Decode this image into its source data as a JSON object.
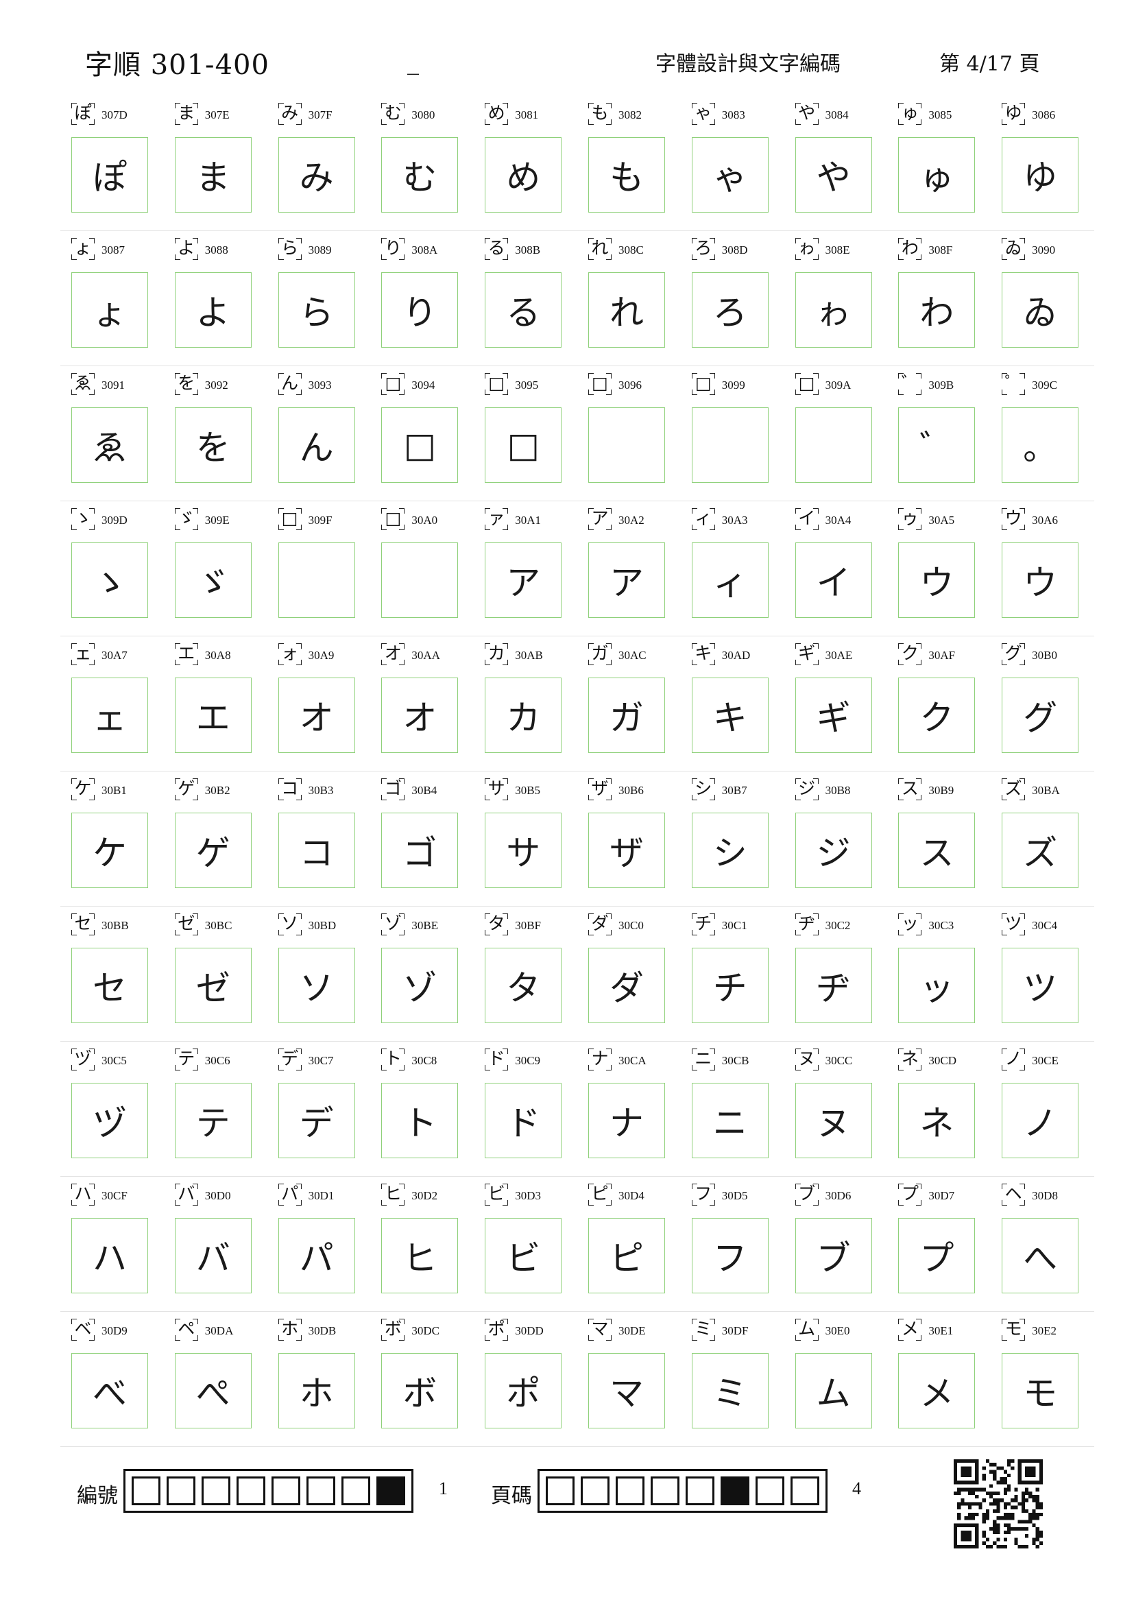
{
  "header": {
    "title": "字順 301-400",
    "dash": "_",
    "project": "字體設計與文字編碼",
    "page": "第 4/17 頁"
  },
  "rows": [
    [
      {
        "ref": "ぽ",
        "code": "307D",
        "hand": "ぽ"
      },
      {
        "ref": "ま",
        "code": "307E",
        "hand": "ま"
      },
      {
        "ref": "み",
        "code": "307F",
        "hand": "み"
      },
      {
        "ref": "む",
        "code": "3080",
        "hand": "む"
      },
      {
        "ref": "め",
        "code": "3081",
        "hand": "め"
      },
      {
        "ref": "も",
        "code": "3082",
        "hand": "も"
      },
      {
        "ref": "ゃ",
        "code": "3083",
        "hand": "ゃ"
      },
      {
        "ref": "や",
        "code": "3084",
        "hand": "や"
      },
      {
        "ref": "ゅ",
        "code": "3085",
        "hand": "ゅ"
      },
      {
        "ref": "ゆ",
        "code": "3086",
        "hand": "ゆ"
      }
    ],
    [
      {
        "ref": "ょ",
        "code": "3087",
        "hand": "ょ"
      },
      {
        "ref": "よ",
        "code": "3088",
        "hand": "よ"
      },
      {
        "ref": "ら",
        "code": "3089",
        "hand": "ら"
      },
      {
        "ref": "り",
        "code": "308A",
        "hand": "り"
      },
      {
        "ref": "る",
        "code": "308B",
        "hand": "る"
      },
      {
        "ref": "れ",
        "code": "308C",
        "hand": "れ"
      },
      {
        "ref": "ろ",
        "code": "308D",
        "hand": "ろ"
      },
      {
        "ref": "ゎ",
        "code": "308E",
        "hand": "ゎ"
      },
      {
        "ref": "わ",
        "code": "308F",
        "hand": "わ"
      },
      {
        "ref": "ゐ",
        "code": "3090",
        "hand": "ゐ"
      }
    ],
    [
      {
        "ref": "ゑ",
        "code": "3091",
        "hand": "ゑ"
      },
      {
        "ref": "を",
        "code": "3092",
        "hand": "を"
      },
      {
        "ref": "ん",
        "code": "3093",
        "hand": "ん"
      },
      {
        "ref": "□",
        "code": "3094",
        "hand": "□"
      },
      {
        "ref": "□",
        "code": "3095",
        "hand": "□"
      },
      {
        "ref": "□",
        "code": "3096",
        "hand": ""
      },
      {
        "ref": "□",
        "code": "3099",
        "hand": ""
      },
      {
        "ref": "□",
        "code": "309A",
        "hand": ""
      },
      {
        "ref": "゛",
        "code": "309B",
        "hand": "゛"
      },
      {
        "ref": "゜",
        "code": "309C",
        "hand": "。"
      }
    ],
    [
      {
        "ref": "ゝ",
        "code": "309D",
        "hand": "ゝ"
      },
      {
        "ref": "ゞ",
        "code": "309E",
        "hand": "ゞ"
      },
      {
        "ref": "□",
        "code": "309F",
        "hand": ""
      },
      {
        "ref": "□",
        "code": "30A0",
        "hand": ""
      },
      {
        "ref": "ァ",
        "code": "30A1",
        "hand": "ア"
      },
      {
        "ref": "ア",
        "code": "30A2",
        "hand": "ア"
      },
      {
        "ref": "ィ",
        "code": "30A3",
        "hand": "ィ"
      },
      {
        "ref": "イ",
        "code": "30A4",
        "hand": "イ"
      },
      {
        "ref": "ゥ",
        "code": "30A5",
        "hand": "ウ"
      },
      {
        "ref": "ウ",
        "code": "30A6",
        "hand": "ウ"
      }
    ],
    [
      {
        "ref": "ェ",
        "code": "30A7",
        "hand": "ェ"
      },
      {
        "ref": "エ",
        "code": "30A8",
        "hand": "エ"
      },
      {
        "ref": "ォ",
        "code": "30A9",
        "hand": "オ"
      },
      {
        "ref": "オ",
        "code": "30AA",
        "hand": "オ"
      },
      {
        "ref": "カ",
        "code": "30AB",
        "hand": "カ"
      },
      {
        "ref": "ガ",
        "code": "30AC",
        "hand": "ガ"
      },
      {
        "ref": "キ",
        "code": "30AD",
        "hand": "キ"
      },
      {
        "ref": "ギ",
        "code": "30AE",
        "hand": "ギ"
      },
      {
        "ref": "ク",
        "code": "30AF",
        "hand": "ク"
      },
      {
        "ref": "グ",
        "code": "30B0",
        "hand": "グ"
      }
    ],
    [
      {
        "ref": "ケ",
        "code": "30B1",
        "hand": "ケ"
      },
      {
        "ref": "ゲ",
        "code": "30B2",
        "hand": "ゲ"
      },
      {
        "ref": "コ",
        "code": "30B3",
        "hand": "コ"
      },
      {
        "ref": "ゴ",
        "code": "30B4",
        "hand": "ゴ"
      },
      {
        "ref": "サ",
        "code": "30B5",
        "hand": "サ"
      },
      {
        "ref": "ザ",
        "code": "30B6",
        "hand": "ザ"
      },
      {
        "ref": "シ",
        "code": "30B7",
        "hand": "シ"
      },
      {
        "ref": "ジ",
        "code": "30B8",
        "hand": "ジ"
      },
      {
        "ref": "ス",
        "code": "30B9",
        "hand": "ス"
      },
      {
        "ref": "ズ",
        "code": "30BA",
        "hand": "ズ"
      }
    ],
    [
      {
        "ref": "セ",
        "code": "30BB",
        "hand": "セ"
      },
      {
        "ref": "ゼ",
        "code": "30BC",
        "hand": "ゼ"
      },
      {
        "ref": "ソ",
        "code": "30BD",
        "hand": "ソ"
      },
      {
        "ref": "ゾ",
        "code": "30BE",
        "hand": "ゾ"
      },
      {
        "ref": "タ",
        "code": "30BF",
        "hand": "タ"
      },
      {
        "ref": "ダ",
        "code": "30C0",
        "hand": "ダ"
      },
      {
        "ref": "チ",
        "code": "30C1",
        "hand": "チ"
      },
      {
        "ref": "ヂ",
        "code": "30C2",
        "hand": "ヂ"
      },
      {
        "ref": "ッ",
        "code": "30C3",
        "hand": "ッ"
      },
      {
        "ref": "ツ",
        "code": "30C4",
        "hand": "ツ"
      }
    ],
    [
      {
        "ref": "ヅ",
        "code": "30C5",
        "hand": "ヅ"
      },
      {
        "ref": "テ",
        "code": "30C6",
        "hand": "テ"
      },
      {
        "ref": "デ",
        "code": "30C7",
        "hand": "デ"
      },
      {
        "ref": "ト",
        "code": "30C8",
        "hand": "ト"
      },
      {
        "ref": "ド",
        "code": "30C9",
        "hand": "ド"
      },
      {
        "ref": "ナ",
        "code": "30CA",
        "hand": "ナ"
      },
      {
        "ref": "ニ",
        "code": "30CB",
        "hand": "ニ"
      },
      {
        "ref": "ヌ",
        "code": "30CC",
        "hand": "ヌ"
      },
      {
        "ref": "ネ",
        "code": "30CD",
        "hand": "ネ"
      },
      {
        "ref": "ノ",
        "code": "30CE",
        "hand": "ノ"
      }
    ],
    [
      {
        "ref": "ハ",
        "code": "30CF",
        "hand": "ハ"
      },
      {
        "ref": "バ",
        "code": "30D0",
        "hand": "バ"
      },
      {
        "ref": "パ",
        "code": "30D1",
        "hand": "パ"
      },
      {
        "ref": "ヒ",
        "code": "30D2",
        "hand": "ヒ"
      },
      {
        "ref": "ビ",
        "code": "30D3",
        "hand": "ビ"
      },
      {
        "ref": "ピ",
        "code": "30D4",
        "hand": "ピ"
      },
      {
        "ref": "フ",
        "code": "30D5",
        "hand": "フ"
      },
      {
        "ref": "ブ",
        "code": "30D6",
        "hand": "ブ"
      },
      {
        "ref": "プ",
        "code": "30D7",
        "hand": "プ"
      },
      {
        "ref": "ヘ",
        "code": "30D8",
        "hand": "へ"
      }
    ],
    [
      {
        "ref": "ベ",
        "code": "30D9",
        "hand": "べ"
      },
      {
        "ref": "ペ",
        "code": "30DA",
        "hand": "ぺ"
      },
      {
        "ref": "ホ",
        "code": "30DB",
        "hand": "ホ"
      },
      {
        "ref": "ボ",
        "code": "30DC",
        "hand": "ボ"
      },
      {
        "ref": "ポ",
        "code": "30DD",
        "hand": "ポ"
      },
      {
        "ref": "マ",
        "code": "30DE",
        "hand": "マ"
      },
      {
        "ref": "ミ",
        "code": "30DF",
        "hand": "ミ"
      },
      {
        "ref": "ム",
        "code": "30E0",
        "hand": "ム"
      },
      {
        "ref": "メ",
        "code": "30E1",
        "hand": "メ"
      },
      {
        "ref": "モ",
        "code": "30E2",
        "hand": "モ"
      }
    ]
  ],
  "footer": {
    "serial_label": "編號",
    "serial_digits": [
      0,
      0,
      0,
      0,
      0,
      0,
      0,
      1
    ],
    "serial_value": "1",
    "page_label": "頁碼",
    "page_digits": [
      0,
      0,
      0,
      0,
      0,
      1,
      0,
      0
    ],
    "page_value": "4"
  }
}
